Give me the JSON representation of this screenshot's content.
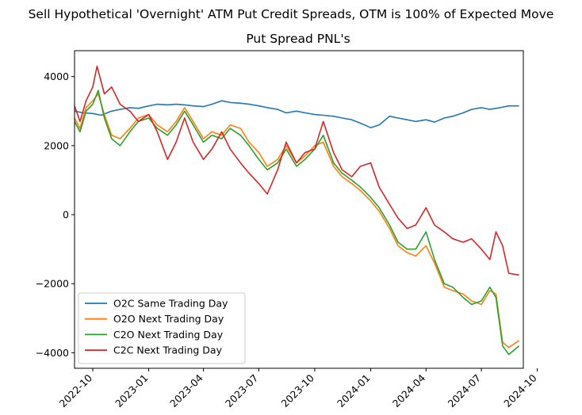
{
  "figure": {
    "suptitle": "Sell Hypothetical 'Overnight' ATM Put Credit Spreads, OTM is 100% of Expected Move"
  },
  "chart_data": {
    "type": "line",
    "title": "Put Spread PNL's",
    "xlabel": "",
    "ylabel": "",
    "x_range": [
      "2022-09-01",
      "2024-09-08"
    ],
    "ylim": [
      -4450,
      4750
    ],
    "x_ticks": [
      {
        "date": "2022-10-01",
        "label": "2022-10"
      },
      {
        "date": "2023-01-01",
        "label": "2023-01"
      },
      {
        "date": "2023-04-01",
        "label": "2023-04"
      },
      {
        "date": "2023-07-01",
        "label": "2023-07"
      },
      {
        "date": "2023-10-01",
        "label": "2023-10"
      },
      {
        "date": "2024-01-01",
        "label": "2024-01"
      },
      {
        "date": "2024-04-01",
        "label": "2024-04"
      },
      {
        "date": "2024-07-01",
        "label": "2024-07"
      },
      {
        "date": "2024-10-01",
        "label": "2024-10"
      }
    ],
    "y_ticks": [
      {
        "value": -4000,
        "label": "−4000"
      },
      {
        "value": -2000,
        "label": "−2000"
      },
      {
        "value": 0,
        "label": "0"
      },
      {
        "value": 2000,
        "label": "2000"
      },
      {
        "value": 4000,
        "label": "4000"
      }
    ],
    "grid": false,
    "legend_position": "lower-left",
    "series": [
      {
        "name": "O2C Same Trading Day",
        "color": "#1f77b4",
        "points": [
          [
            "2022-09-01",
            3000
          ],
          [
            "2022-09-15",
            2950
          ],
          [
            "2022-10-01",
            2930
          ],
          [
            "2022-10-15",
            2880
          ],
          [
            "2022-11-01",
            3000
          ],
          [
            "2022-11-15",
            3050
          ],
          [
            "2022-12-01",
            3100
          ],
          [
            "2022-12-15",
            3080
          ],
          [
            "2023-01-01",
            3150
          ],
          [
            "2023-01-15",
            3200
          ],
          [
            "2023-02-01",
            3180
          ],
          [
            "2023-02-15",
            3200
          ],
          [
            "2023-03-01",
            3180
          ],
          [
            "2023-03-15",
            3150
          ],
          [
            "2023-04-01",
            3130
          ],
          [
            "2023-04-15",
            3200
          ],
          [
            "2023-05-01",
            3300
          ],
          [
            "2023-05-15",
            3250
          ],
          [
            "2023-06-01",
            3230
          ],
          [
            "2023-06-15",
            3200
          ],
          [
            "2023-07-01",
            3150
          ],
          [
            "2023-07-15",
            3100
          ],
          [
            "2023-08-01",
            3050
          ],
          [
            "2023-08-15",
            2950
          ],
          [
            "2023-09-01",
            3000
          ],
          [
            "2023-09-15",
            2950
          ],
          [
            "2023-10-01",
            2900
          ],
          [
            "2023-10-15",
            2880
          ],
          [
            "2023-11-01",
            2850
          ],
          [
            "2023-11-15",
            2800
          ],
          [
            "2023-12-01",
            2750
          ],
          [
            "2023-12-15",
            2650
          ],
          [
            "2024-01-01",
            2520
          ],
          [
            "2024-01-15",
            2600
          ],
          [
            "2024-02-01",
            2850
          ],
          [
            "2024-02-15",
            2800
          ],
          [
            "2024-03-01",
            2750
          ],
          [
            "2024-03-15",
            2700
          ],
          [
            "2024-04-01",
            2750
          ],
          [
            "2024-04-15",
            2680
          ],
          [
            "2024-05-01",
            2800
          ],
          [
            "2024-05-15",
            2850
          ],
          [
            "2024-06-01",
            2950
          ],
          [
            "2024-06-15",
            3050
          ],
          [
            "2024-07-01",
            3100
          ],
          [
            "2024-07-15",
            3050
          ],
          [
            "2024-08-01",
            3100
          ],
          [
            "2024-08-15",
            3150
          ],
          [
            "2024-09-01",
            3150
          ]
        ]
      },
      {
        "name": "O2O Next Trading Day",
        "color": "#ff7f0e",
        "points": [
          [
            "2022-09-01",
            2800
          ],
          [
            "2022-09-10",
            2500
          ],
          [
            "2022-09-20",
            3100
          ],
          [
            "2022-10-01",
            3300
          ],
          [
            "2022-10-10",
            3500
          ],
          [
            "2022-10-20",
            2900
          ],
          [
            "2022-11-01",
            2300
          ],
          [
            "2022-11-15",
            2200
          ],
          [
            "2022-12-01",
            2500
          ],
          [
            "2022-12-15",
            2800
          ],
          [
            "2023-01-01",
            2900
          ],
          [
            "2023-01-15",
            2600
          ],
          [
            "2023-02-01",
            2400
          ],
          [
            "2023-02-15",
            2700
          ],
          [
            "2023-03-01",
            3100
          ],
          [
            "2023-03-15",
            2700
          ],
          [
            "2023-04-01",
            2200
          ],
          [
            "2023-04-15",
            2400
          ],
          [
            "2023-05-01",
            2300
          ],
          [
            "2023-05-15",
            2600
          ],
          [
            "2023-06-01",
            2500
          ],
          [
            "2023-06-15",
            2100
          ],
          [
            "2023-07-01",
            1800
          ],
          [
            "2023-07-15",
            1400
          ],
          [
            "2023-08-01",
            1600
          ],
          [
            "2023-08-15",
            2000
          ],
          [
            "2023-09-01",
            1500
          ],
          [
            "2023-09-15",
            1700
          ],
          [
            "2023-10-01",
            2000
          ],
          [
            "2023-10-15",
            2100
          ],
          [
            "2023-11-01",
            1400
          ],
          [
            "2023-11-15",
            1100
          ],
          [
            "2023-12-01",
            900
          ],
          [
            "2023-12-15",
            700
          ],
          [
            "2024-01-01",
            400
          ],
          [
            "2024-01-15",
            100
          ],
          [
            "2024-02-01",
            -400
          ],
          [
            "2024-02-15",
            -900
          ],
          [
            "2024-03-01",
            -1100
          ],
          [
            "2024-03-15",
            -1200
          ],
          [
            "2024-04-01",
            -900
          ],
          [
            "2024-04-15",
            -1400
          ],
          [
            "2024-05-01",
            -2100
          ],
          [
            "2024-05-15",
            -2200
          ],
          [
            "2024-06-01",
            -2300
          ],
          [
            "2024-06-15",
            -2500
          ],
          [
            "2024-07-01",
            -2600
          ],
          [
            "2024-07-15",
            -2200
          ],
          [
            "2024-07-25",
            -2300
          ],
          [
            "2024-08-05",
            -3700
          ],
          [
            "2024-08-15",
            -3850
          ],
          [
            "2024-09-01",
            -3650
          ]
        ]
      },
      {
        "name": "C2O Next Trading Day",
        "color": "#2ca02c",
        "points": [
          [
            "2022-09-01",
            2700
          ],
          [
            "2022-09-10",
            2400
          ],
          [
            "2022-09-20",
            3000
          ],
          [
            "2022-10-01",
            3200
          ],
          [
            "2022-10-10",
            3600
          ],
          [
            "2022-10-20",
            2800
          ],
          [
            "2022-11-01",
            2200
          ],
          [
            "2022-11-15",
            2000
          ],
          [
            "2022-12-01",
            2400
          ],
          [
            "2022-12-15",
            2700
          ],
          [
            "2023-01-01",
            2800
          ],
          [
            "2023-01-15",
            2500
          ],
          [
            "2023-02-01",
            2300
          ],
          [
            "2023-02-15",
            2600
          ],
          [
            "2023-03-01",
            3000
          ],
          [
            "2023-03-15",
            2600
          ],
          [
            "2023-04-01",
            2100
          ],
          [
            "2023-04-15",
            2300
          ],
          [
            "2023-05-01",
            2200
          ],
          [
            "2023-05-15",
            2500
          ],
          [
            "2023-06-01",
            2300
          ],
          [
            "2023-06-15",
            2000
          ],
          [
            "2023-07-01",
            1600
          ],
          [
            "2023-07-15",
            1300
          ],
          [
            "2023-08-01",
            1500
          ],
          [
            "2023-08-15",
            1900
          ],
          [
            "2023-09-01",
            1400
          ],
          [
            "2023-09-15",
            1600
          ],
          [
            "2023-10-01",
            1900
          ],
          [
            "2023-10-15",
            2300
          ],
          [
            "2023-11-01",
            1500
          ],
          [
            "2023-11-15",
            1200
          ],
          [
            "2023-12-01",
            1000
          ],
          [
            "2023-12-15",
            800
          ],
          [
            "2024-01-01",
            500
          ],
          [
            "2024-01-15",
            200
          ],
          [
            "2024-02-01",
            -300
          ],
          [
            "2024-02-15",
            -800
          ],
          [
            "2024-03-01",
            -1000
          ],
          [
            "2024-03-15",
            -1000
          ],
          [
            "2024-04-01",
            -500
          ],
          [
            "2024-04-15",
            -1300
          ],
          [
            "2024-05-01",
            -2000
          ],
          [
            "2024-05-15",
            -2100
          ],
          [
            "2024-06-01",
            -2400
          ],
          [
            "2024-06-15",
            -2600
          ],
          [
            "2024-07-01",
            -2500
          ],
          [
            "2024-07-15",
            -2100
          ],
          [
            "2024-07-25",
            -2400
          ],
          [
            "2024-08-05",
            -3800
          ],
          [
            "2024-08-15",
            -4050
          ],
          [
            "2024-09-01",
            -3800
          ]
        ]
      },
      {
        "name": "C2C Next Trading Day",
        "color": "#d62728",
        "points": [
          [
            "2022-09-01",
            3150
          ],
          [
            "2022-09-10",
            2700
          ],
          [
            "2022-09-20",
            3300
          ],
          [
            "2022-10-01",
            3700
          ],
          [
            "2022-10-08",
            4300
          ],
          [
            "2022-10-20",
            3500
          ],
          [
            "2022-11-01",
            3700
          ],
          [
            "2022-11-15",
            3200
          ],
          [
            "2022-12-01",
            3000
          ],
          [
            "2022-12-15",
            2700
          ],
          [
            "2023-01-01",
            2900
          ],
          [
            "2023-01-15",
            2400
          ],
          [
            "2023-02-01",
            1600
          ],
          [
            "2023-02-15",
            2100
          ],
          [
            "2023-03-01",
            2800
          ],
          [
            "2023-03-15",
            2100
          ],
          [
            "2023-04-01",
            1600
          ],
          [
            "2023-04-15",
            1900
          ],
          [
            "2023-05-01",
            2400
          ],
          [
            "2023-05-15",
            1900
          ],
          [
            "2023-06-01",
            1500
          ],
          [
            "2023-06-15",
            1200
          ],
          [
            "2023-07-01",
            900
          ],
          [
            "2023-07-15",
            600
          ],
          [
            "2023-08-01",
            1300
          ],
          [
            "2023-08-15",
            2100
          ],
          [
            "2023-09-01",
            1500
          ],
          [
            "2023-09-15",
            1800
          ],
          [
            "2023-10-01",
            1900
          ],
          [
            "2023-10-15",
            2700
          ],
          [
            "2023-11-01",
            1800
          ],
          [
            "2023-11-15",
            1300
          ],
          [
            "2023-12-01",
            1100
          ],
          [
            "2023-12-15",
            1400
          ],
          [
            "2024-01-01",
            1500
          ],
          [
            "2024-01-15",
            800
          ],
          [
            "2024-02-01",
            300
          ],
          [
            "2024-02-15",
            -100
          ],
          [
            "2024-03-01",
            -400
          ],
          [
            "2024-03-15",
            -300
          ],
          [
            "2024-04-01",
            200
          ],
          [
            "2024-04-15",
            -300
          ],
          [
            "2024-05-01",
            -500
          ],
          [
            "2024-05-15",
            -700
          ],
          [
            "2024-06-01",
            -800
          ],
          [
            "2024-06-15",
            -700
          ],
          [
            "2024-07-01",
            -1000
          ],
          [
            "2024-07-15",
            -1300
          ],
          [
            "2024-07-25",
            -500
          ],
          [
            "2024-08-05",
            -900
          ],
          [
            "2024-08-15",
            -1700
          ],
          [
            "2024-09-01",
            -1750
          ]
        ]
      }
    ]
  }
}
